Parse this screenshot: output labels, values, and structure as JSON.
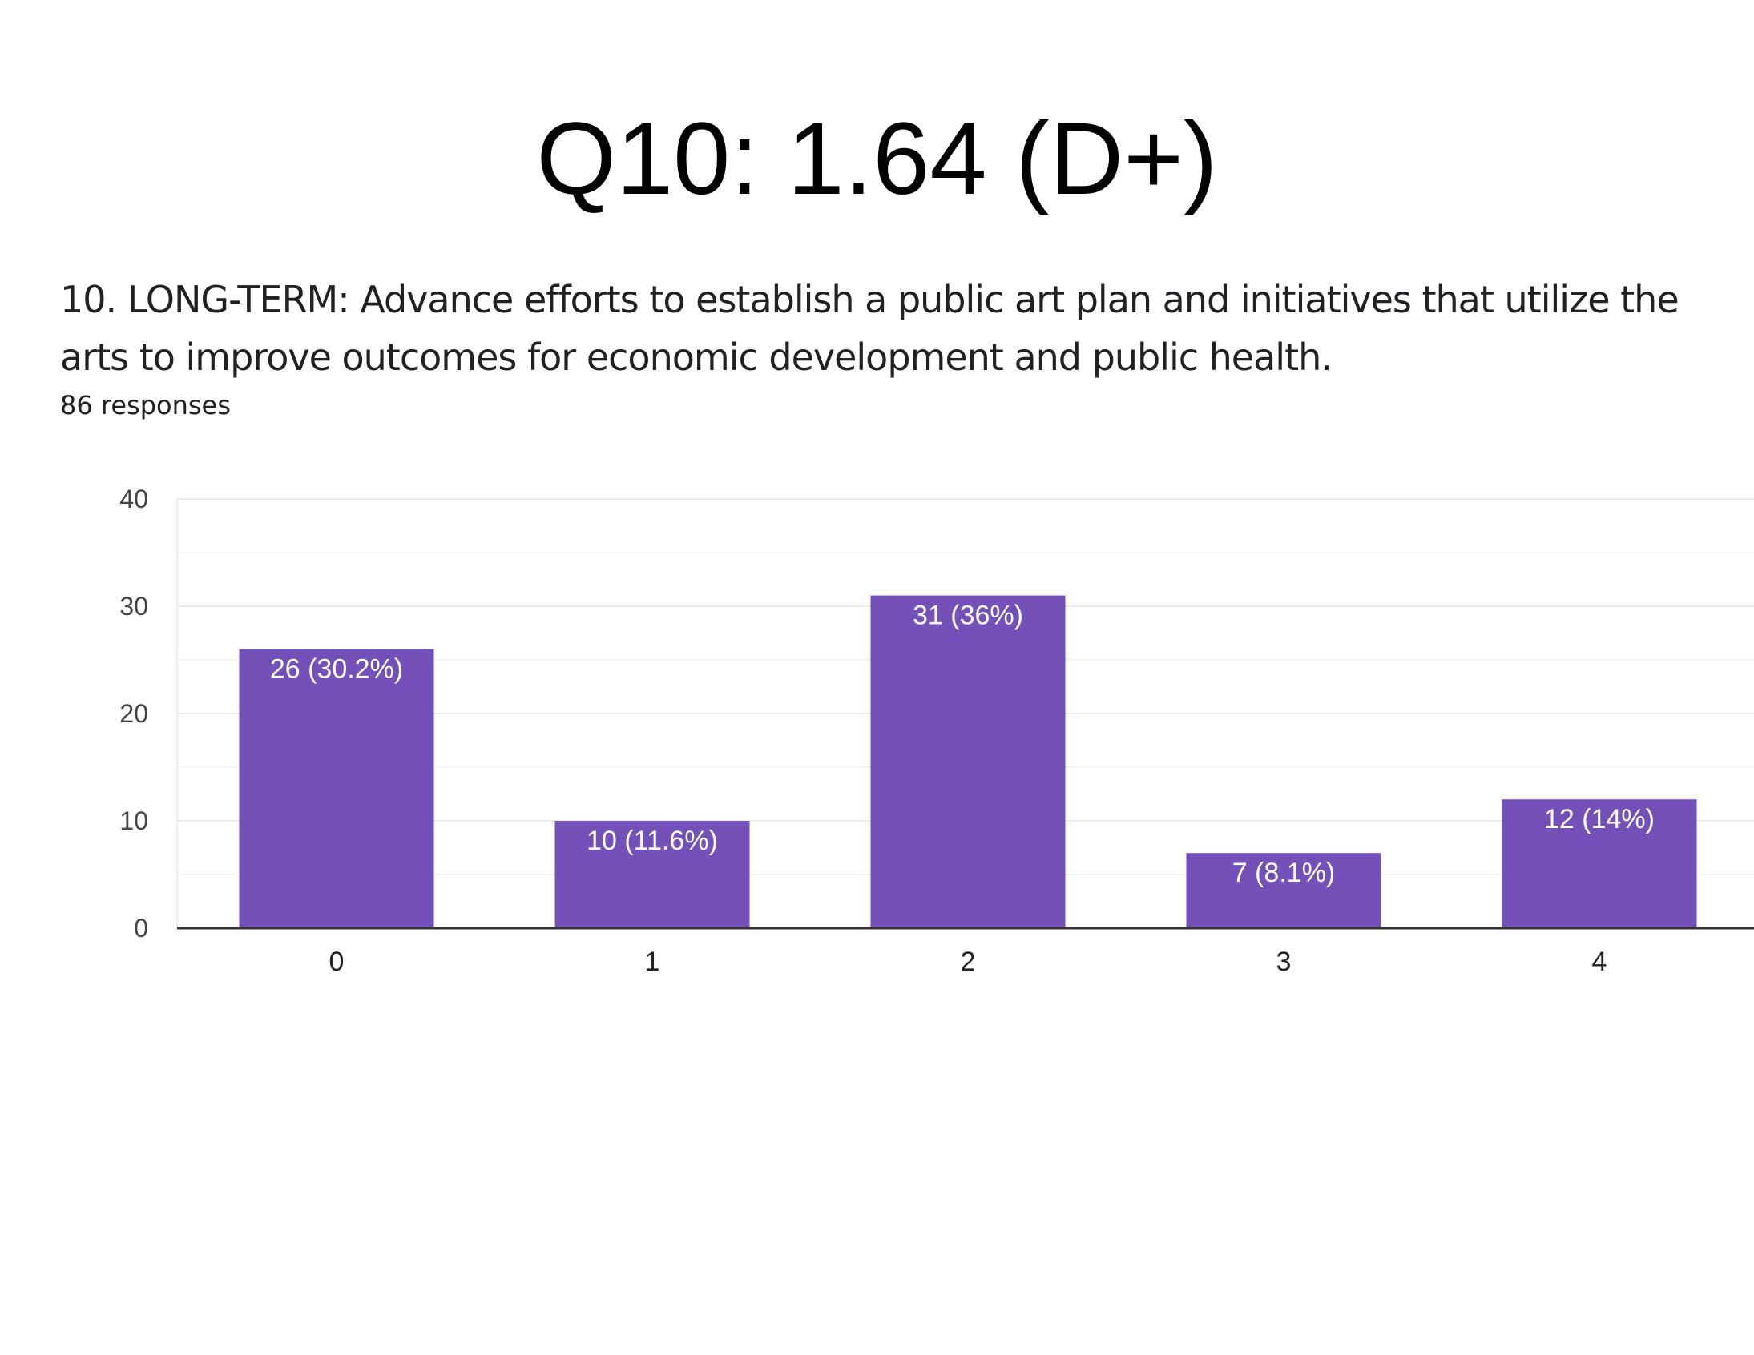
{
  "header": {
    "title": "Q10: 1.64 (D+)",
    "question": "10. LONG-TERM: Advance efforts to establish a public art plan and initiatives that utilize the arts to improve outcomes for economic development and public health.",
    "responses": "86 responses"
  },
  "chart_data": {
    "type": "bar",
    "title": "",
    "xlabel": "",
    "ylabel": "",
    "categories": [
      "0",
      "1",
      "2",
      "3",
      "4"
    ],
    "values": [
      26,
      10,
      31,
      7,
      12
    ],
    "data_labels": [
      "26 (30.2%)",
      "10 (11.6%)",
      "31 (36%)",
      "7 (8.1%)",
      "12 (14%)"
    ],
    "ylim": [
      0,
      40
    ],
    "yticks": [
      "0",
      "10",
      "20",
      "30",
      "40"
    ],
    "grid": true,
    "bar_color": "#7451b9"
  }
}
